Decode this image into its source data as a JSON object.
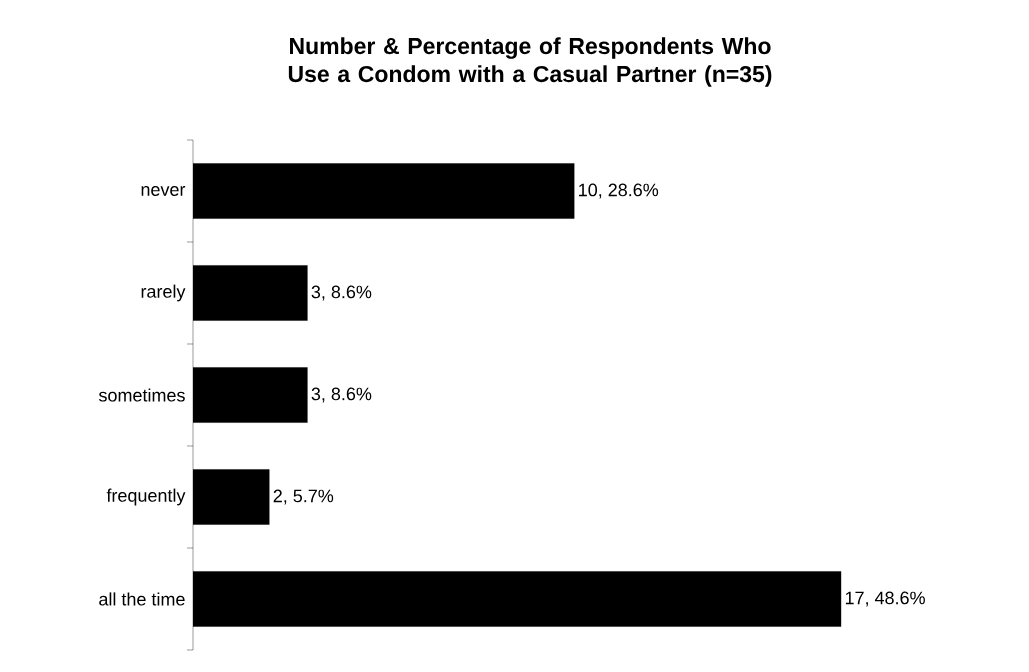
{
  "chart_data": {
    "type": "bar",
    "orientation": "horizontal",
    "title": "Number & Percentage of Respondents Who Use a Condom with a Casual Partner (n=35)",
    "categories": [
      "never",
      "rarely",
      "sometimes",
      "frequently",
      "all the time"
    ],
    "values": [
      10,
      3,
      3,
      2,
      17
    ],
    "value_labels": [
      "10, 28.6%",
      "3, 8.6%",
      "3, 8.6%",
      "2, 5.7%",
      "17, 48.6%"
    ],
    "color": "#000000"
  }
}
